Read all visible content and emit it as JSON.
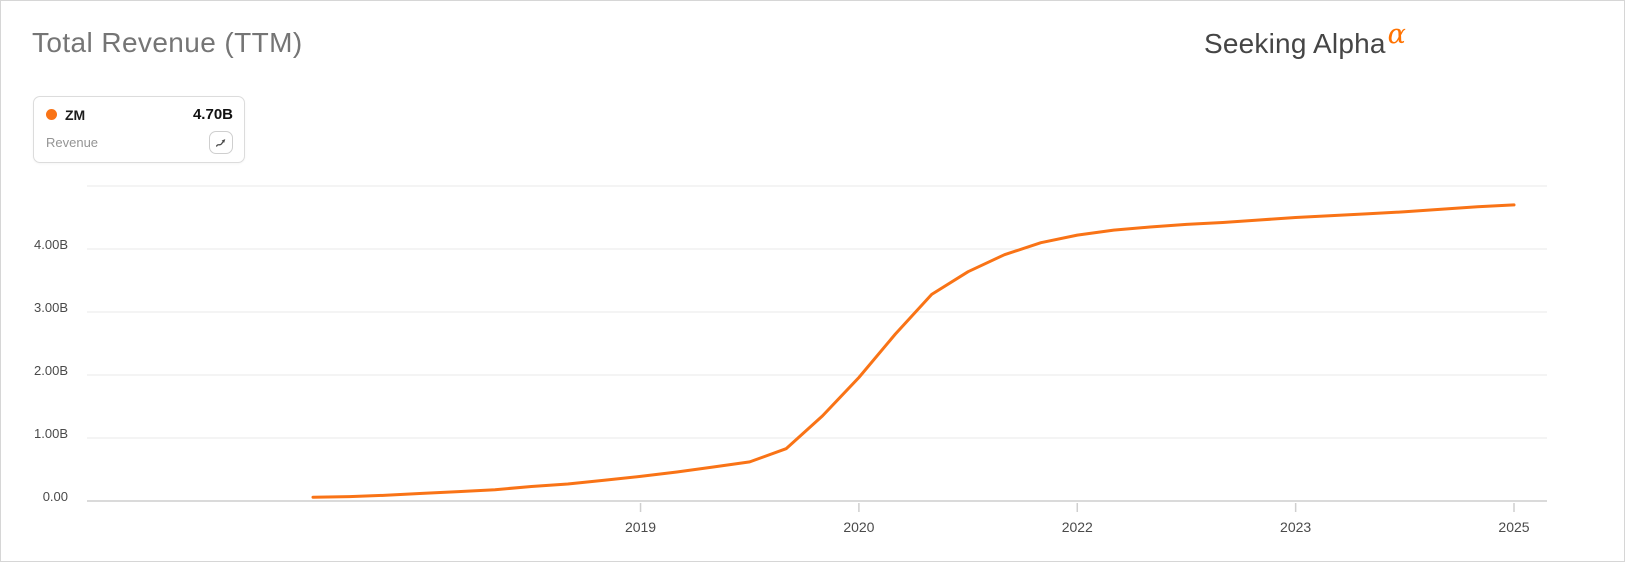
{
  "header": {
    "title": "Total Revenue (TTM)",
    "brand": {
      "name": "Seeking Alpha",
      "alpha_symbol": "α",
      "alpha_color": "#ff7200"
    }
  },
  "legend": {
    "ticker": "ZM",
    "value": "4.70B",
    "series_label": "Revenue",
    "dot_color": "#f97316",
    "icon": "trend-arrow-icon"
  },
  "chart_data": {
    "type": "line",
    "title": "Total Revenue (TTM)",
    "ticker": "ZM",
    "metric": "Revenue TTM",
    "unit": "USD billions",
    "line_color": "#f97316",
    "ylim": [
      0,
      5
    ],
    "grid": "horizontal-only",
    "legend_position": "top-left",
    "y_axis": {
      "ticks": [
        {
          "label": "4.00B",
          "value": 4
        },
        {
          "label": "3.00B",
          "value": 3
        },
        {
          "label": "2.00B",
          "value": 2
        },
        {
          "label": "1.00B",
          "value": 1
        },
        {
          "label": "0.00",
          "value": 0
        }
      ]
    },
    "x_axis": {
      "tick_labels": [
        "2019",
        "2020",
        "2022",
        "2023",
        "2025"
      ],
      "tick_point_indices": [
        9,
        15,
        21,
        27,
        33
      ]
    },
    "points": [
      {
        "date": "2017-01",
        "value": 0.06
      },
      {
        "date": "2017-04",
        "value": 0.07
      },
      {
        "date": "2017-07",
        "value": 0.09
      },
      {
        "date": "2017-10",
        "value": 0.12
      },
      {
        "date": "2018-01",
        "value": 0.15
      },
      {
        "date": "2018-04",
        "value": 0.18
      },
      {
        "date": "2018-07",
        "value": 0.23
      },
      {
        "date": "2018-10",
        "value": 0.27
      },
      {
        "date": "2019-01",
        "value": 0.33
      },
      {
        "date": "2019-04",
        "value": 0.39
      },
      {
        "date": "2019-07",
        "value": 0.46
      },
      {
        "date": "2019-10",
        "value": 0.54
      },
      {
        "date": "2020-01",
        "value": 0.62
      },
      {
        "date": "2020-04",
        "value": 0.83
      },
      {
        "date": "2020-07",
        "value": 1.35
      },
      {
        "date": "2020-10",
        "value": 1.96
      },
      {
        "date": "2021-01",
        "value": 2.65
      },
      {
        "date": "2021-04",
        "value": 3.28
      },
      {
        "date": "2021-07",
        "value": 3.64
      },
      {
        "date": "2021-10",
        "value": 3.91
      },
      {
        "date": "2022-01",
        "value": 4.1
      },
      {
        "date": "2022-04",
        "value": 4.22
      },
      {
        "date": "2022-07",
        "value": 4.3
      },
      {
        "date": "2022-10",
        "value": 4.35
      },
      {
        "date": "2023-01",
        "value": 4.39
      },
      {
        "date": "2023-04",
        "value": 4.42
      },
      {
        "date": "2023-07",
        "value": 4.46
      },
      {
        "date": "2023-10",
        "value": 4.5
      },
      {
        "date": "2024-01",
        "value": 4.53
      },
      {
        "date": "2024-04",
        "value": 4.56
      },
      {
        "date": "2024-07",
        "value": 4.59
      },
      {
        "date": "2024-10",
        "value": 4.63
      },
      {
        "date": "2025-01",
        "value": 4.67
      },
      {
        "date": "2025-04",
        "value": 4.7
      }
    ]
  }
}
